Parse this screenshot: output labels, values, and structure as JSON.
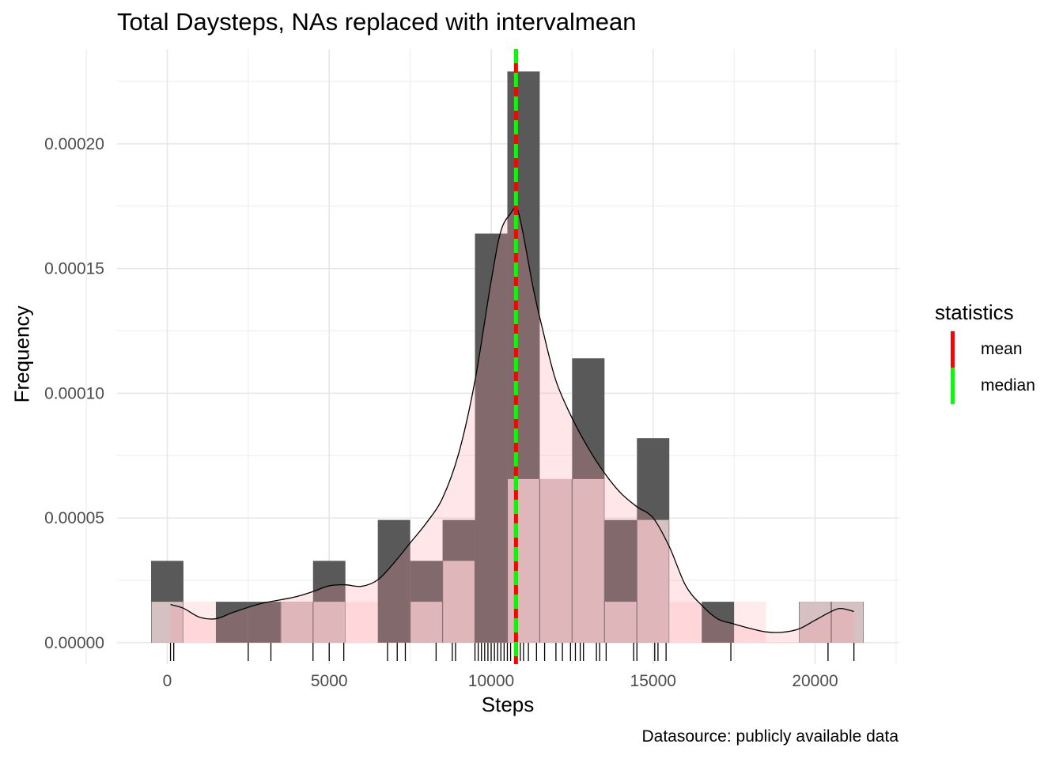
{
  "chart_data": {
    "type": "bar",
    "title": "Total Daysteps, NAs replaced with intervalmean",
    "xlabel": "Steps",
    "ylabel": "Frequency",
    "caption": "Datasource: publicly available data",
    "xlim": [
      -1550,
      22600
    ],
    "ylim": [
      -8.6e-06,
      0.000238
    ],
    "x_ticks": [
      0,
      5000,
      10000,
      15000,
      20000
    ],
    "x_tick_labels": [
      "0",
      "5000",
      "10000",
      "15000",
      "20000"
    ],
    "y_ticks": [
      0,
      5e-05,
      0.0001,
      0.00015,
      0.0002
    ],
    "y_tick_labels": [
      "0.00000",
      "0.00005",
      "0.00010",
      "0.00015",
      "0.00020"
    ],
    "grid": true,
    "legend_position": "right",
    "histogram": {
      "bin_width": 1000,
      "bin_centers": [
        0,
        1000,
        2000,
        3000,
        4000,
        5000,
        6000,
        7000,
        8000,
        9000,
        10000,
        11000,
        12000,
        13000,
        14000,
        15000,
        16000,
        17000,
        18000,
        19000,
        20000,
        21000
      ],
      "dark_values": [
        3.28e-05,
        0,
        1.64e-05,
        1.64e-05,
        1.64e-05,
        3.28e-05,
        0,
        4.92e-05,
        3.28e-05,
        4.92e-05,
        0.000164,
        0.000229,
        6.56e-05,
        0.000114,
        4.92e-05,
        8.2e-05,
        0,
        1.64e-05,
        0,
        0,
        1.64e-05,
        1.64e-05
      ],
      "pink_values": [
        1.64e-05,
        1.64e-05,
        0,
        0,
        1.64e-05,
        1.64e-05,
        1.64e-05,
        0,
        1.64e-05,
        3.28e-05,
        0,
        6.56e-05,
        6.56e-05,
        6.56e-05,
        1.64e-05,
        4.92e-05,
        1.64e-05,
        0,
        1.64e-05,
        0,
        1.64e-05,
        1.64e-05
      ],
      "dark_color": "#595959",
      "pink_color": "#FFE4E6",
      "overlap_color": "#6B4B4D"
    },
    "density": {
      "x": [
        100,
        500,
        1000,
        1500,
        2000,
        2500,
        3000,
        3500,
        4000,
        4500,
        5000,
        5500,
        6000,
        6500,
        7000,
        7500,
        8000,
        8500,
        9000,
        9500,
        10000,
        10300,
        10600,
        10800,
        11000,
        11300,
        11600,
        12000,
        12500,
        13000,
        13500,
        14000,
        14500,
        15000,
        15500,
        16000,
        16500,
        17000,
        17500,
        18000,
        18500,
        19000,
        19500,
        20000,
        20500,
        20800,
        21200
      ],
      "y": [
        1.53e-05,
        1.38e-05,
        1.02e-05,
        9.6e-06,
        1.2e-05,
        1.42e-05,
        1.6e-05,
        1.72e-05,
        1.85e-05,
        2.05e-05,
        2.28e-05,
        2.32e-05,
        2.26e-05,
        2.52e-05,
        3.2e-05,
        4e-05,
        4.8e-05,
        5.8e-05,
        7.6e-05,
        0.000105,
        0.000145,
        0.000165,
        0.000172,
        0.000174,
        0.000163,
        0.000142,
        0.000125,
        0.000105,
        9e-05,
        7.8e-05,
        6.8e-05,
        6e-05,
        5.45e-05,
        5e-05,
        3.85e-05,
        2.3e-05,
        1.5e-05,
        9.5e-06,
        7.5e-06,
        5.7e-06,
        4.3e-06,
        4.2e-06,
        5.5e-06,
        9e-06,
        1.25e-05,
        1.37e-05,
        1.25e-05
      ],
      "color": "#000000"
    },
    "rug": [
      100,
      200,
      2500,
      3200,
      4500,
      5000,
      5450,
      6800,
      7100,
      7350,
      8300,
      8800,
      8900,
      9500,
      9600,
      9700,
      9800,
      9900,
      10000,
      10100,
      10200,
      10300,
      10400,
      10500,
      10600,
      10766,
      10766,
      10800,
      10900,
      11000,
      11150,
      11400,
      11650,
      12000,
      12200,
      12450,
      12600,
      12750,
      12850,
      13250,
      13350,
      13550,
      14400,
      14500,
      15050,
      15150,
      15400,
      17400,
      20400,
      21200
    ],
    "mean_line": {
      "name": "mean",
      "value": 10766.19,
      "color": "#FF0000"
    },
    "median_line": {
      "name": "median",
      "value": 10766.19,
      "color": "#00FF00"
    },
    "legend": {
      "title": "statistics",
      "entries": [
        {
          "label": "mean",
          "color": "#FF0000"
        },
        {
          "label": "median",
          "color": "#00FF00"
        }
      ]
    }
  }
}
